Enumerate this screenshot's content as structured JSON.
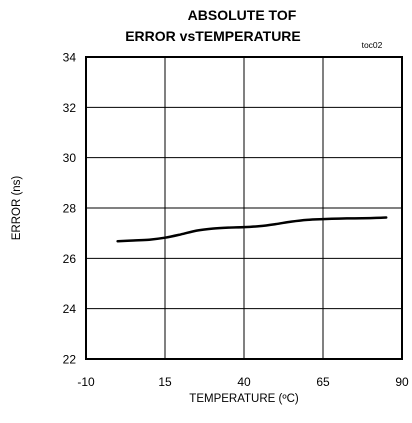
{
  "chart_data": {
    "type": "line",
    "title_lines": [
      "ABSOLUTE TOF",
      "ERROR vsTEMPERATURE"
    ],
    "annotation": "toc02",
    "xlabel": "TEMPERATURE (ºC)",
    "ylabel": "ERROR (ns)",
    "xlim": [
      -10,
      90
    ],
    "ylim": [
      22,
      34
    ],
    "x_ticks": [
      -10,
      15,
      40,
      65,
      90
    ],
    "x_tick_labels": [
      "-10",
      "15",
      "40",
      "65",
      "90"
    ],
    "y_ticks": [
      22,
      24,
      26,
      28,
      30,
      32,
      34
    ],
    "y_tick_labels": [
      "22",
      "24",
      "26",
      "28",
      "30",
      "32",
      "34"
    ],
    "grid": true,
    "series": [
      {
        "x": [
          0,
          5,
          10,
          15,
          20,
          25,
          30,
          35,
          40,
          45,
          50,
          55,
          60,
          65,
          70,
          75,
          80,
          85
        ],
        "y": [
          26.68,
          26.71,
          26.74,
          26.82,
          26.95,
          27.1,
          27.18,
          27.22,
          27.24,
          27.28,
          27.36,
          27.46,
          27.53,
          27.56,
          27.58,
          27.59,
          27.6,
          27.62
        ]
      }
    ],
    "colors": {
      "line": "#000000",
      "grid": "#000000",
      "background": "#ffffff"
    }
  }
}
